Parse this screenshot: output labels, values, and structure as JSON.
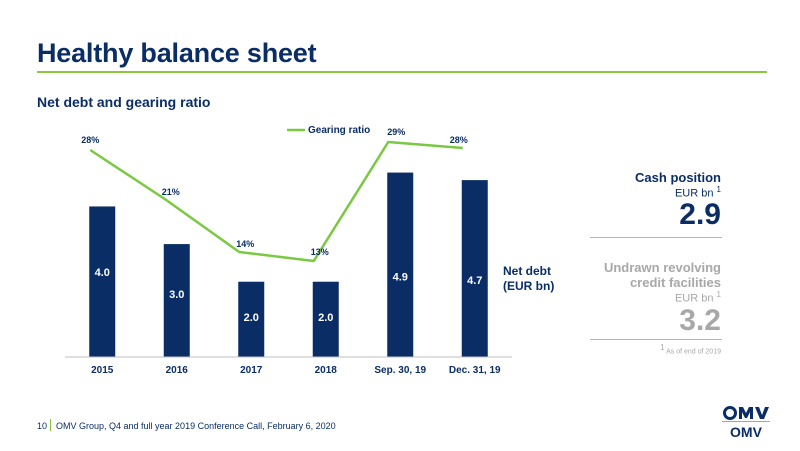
{
  "header": {
    "title": "Healthy balance sheet",
    "subtitle": "Net debt and gearing ratio"
  },
  "chart_data": {
    "type": "bar",
    "categories": [
      "2015",
      "2016",
      "2017",
      "2018",
      "Sep. 30, 19",
      "Dec. 31, 19"
    ],
    "series": [
      {
        "name": "Net debt (EUR bn)",
        "type": "bar",
        "values": [
          4.0,
          3.0,
          2.0,
          2.0,
          4.9,
          4.7
        ],
        "labels": [
          "4.0",
          "3.0",
          "2.0",
          "2.0",
          "4.9",
          "4.7"
        ],
        "color": "#0a2d66"
      },
      {
        "name": "Gearing ratio",
        "type": "line",
        "values": [
          28,
          21,
          14,
          13,
          29,
          28
        ],
        "labels": [
          "28%",
          "21%",
          "14%",
          "13%",
          "29%",
          "28%"
        ],
        "color": "#7ac943"
      }
    ],
    "legend": {
      "label": "Gearing ratio",
      "position": "top"
    },
    "series_label_lines": [
      "Net debt",
      "(EUR bn)"
    ],
    "bar_ylim": [
      0,
      5.5
    ],
    "line_ylim": [
      0,
      32
    ]
  },
  "sidebar": {
    "cash_label": "Cash position",
    "cash_unit": "EUR bn",
    "cash_unit_sup": "1",
    "cash_value": "2.9",
    "undrawn_label": "Undrawn revolving credit facilities",
    "undrawn_unit": "EUR bn",
    "undrawn_unit_sup": "1",
    "undrawn_value": "3.2",
    "footnote_sup": "1",
    "footnote": "As of end of 2019"
  },
  "footer": {
    "page_number": "10",
    "text": "OMV Group, Q4 and full year 2019 Conference Call, February 6, 2020"
  },
  "logo": {
    "text": "OMV",
    "name": "omv-logo-icon"
  },
  "colors": {
    "navy": "#0a2d66",
    "green": "#8cc63f",
    "line_green": "#7ac943",
    "grey": "#a8a8a8"
  }
}
